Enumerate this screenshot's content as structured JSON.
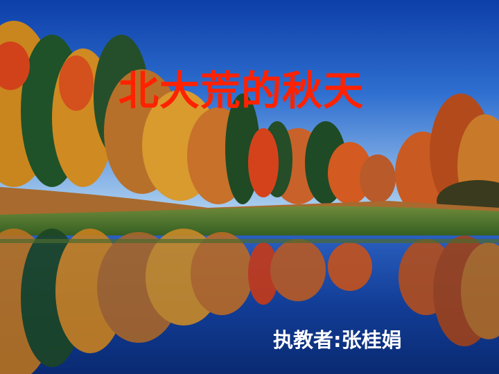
{
  "slide": {
    "title": "北大荒的秋天",
    "credit": "执教者:张桂娟",
    "title_color": "#ff2200",
    "credit_color": "#ffffff"
  }
}
